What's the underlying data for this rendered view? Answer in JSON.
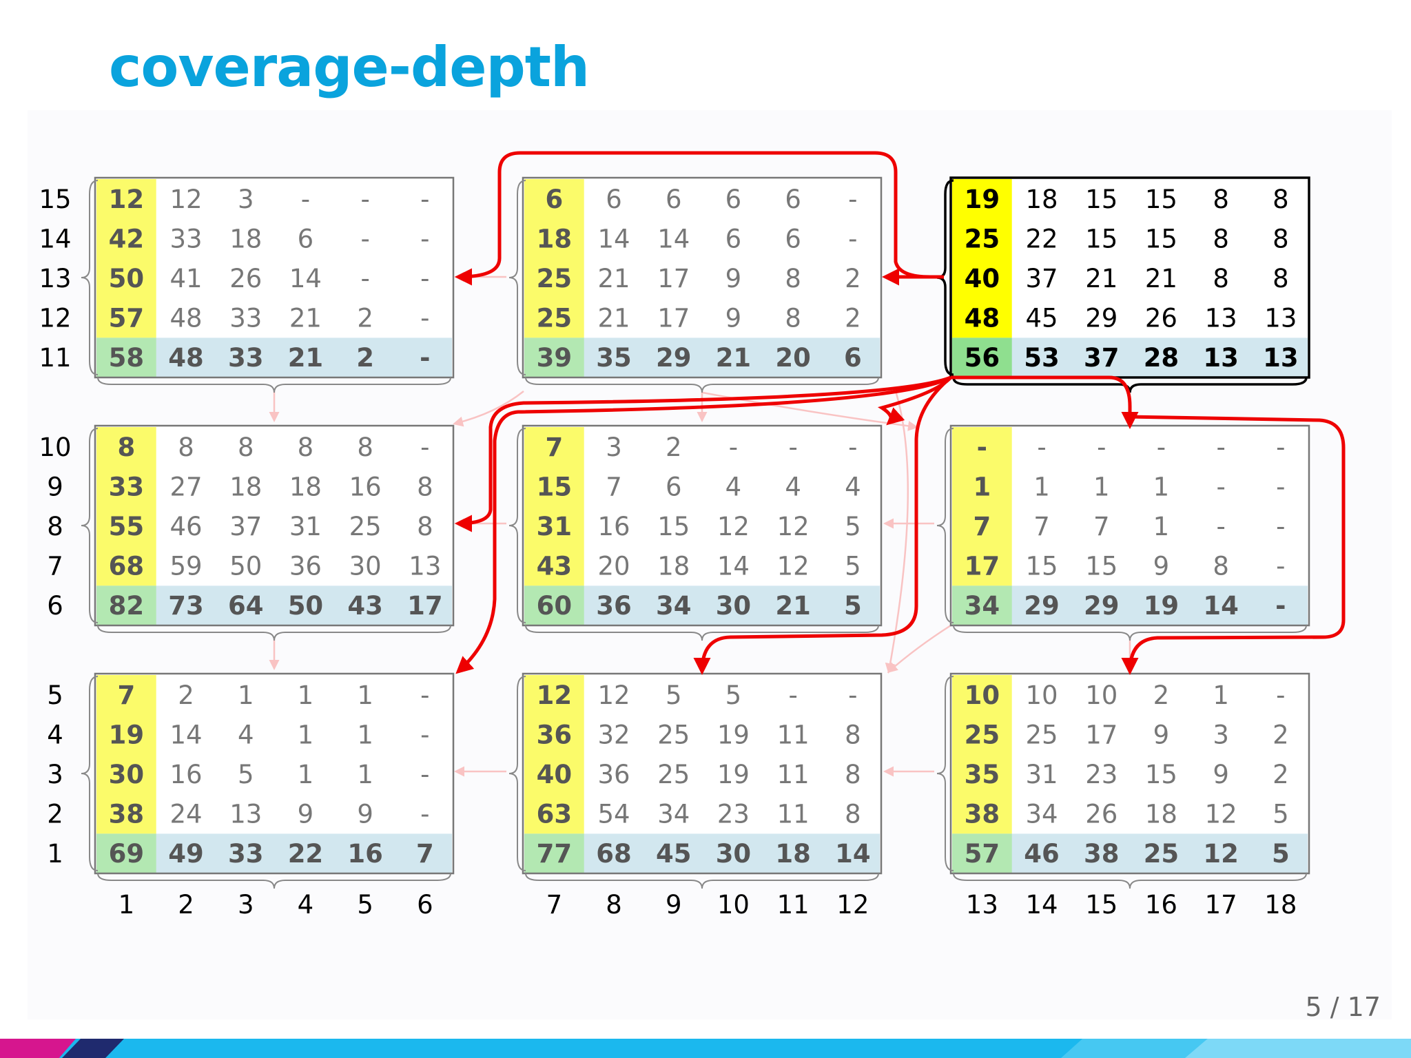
{
  "slide": {
    "title": "coverage-depth",
    "page_number": "5 / 17"
  },
  "diagram": {
    "row_labels": [
      "15",
      "14",
      "13",
      "12",
      "11",
      "10",
      "9",
      "8",
      "7",
      "6",
      "5",
      "4",
      "3",
      "2",
      "1"
    ],
    "col_labels": [
      "1",
      "2",
      "3",
      "4",
      "5",
      "6",
      "7",
      "8",
      "9",
      "10",
      "11",
      "12",
      "13",
      "14",
      "15",
      "16",
      "17",
      "18"
    ],
    "colors": {
      "first_column_fill": "#fbfb6a",
      "highlight_first_column_fill": "#ffff00",
      "bottom_row_fill": "#d2e7ef",
      "corner_cell_fill": "#b3e8b2",
      "highlight_corner_fill": "#8fdf8f",
      "red_arrow": "#ee0000",
      "faint_arrow": "#f9c3c3",
      "box_border": "#777777",
      "highlight_border": "#000000"
    },
    "blocks": [
      {
        "id": "b11",
        "highlight": false,
        "rows": [
          [
            "12",
            "12",
            "3",
            "-",
            "-",
            "-"
          ],
          [
            "42",
            "33",
            "18",
            "6",
            "-",
            "-"
          ],
          [
            "50",
            "41",
            "26",
            "14",
            "-",
            "-"
          ],
          [
            "57",
            "48",
            "33",
            "21",
            "2",
            "-"
          ],
          [
            "58",
            "48",
            "33",
            "21",
            "2",
            "-"
          ]
        ]
      },
      {
        "id": "b12",
        "highlight": false,
        "rows": [
          [
            "6",
            "6",
            "6",
            "6",
            "6",
            "-"
          ],
          [
            "18",
            "14",
            "14",
            "6",
            "6",
            "-"
          ],
          [
            "25",
            "21",
            "17",
            "9",
            "8",
            "2"
          ],
          [
            "25",
            "21",
            "17",
            "9",
            "8",
            "2"
          ],
          [
            "39",
            "35",
            "29",
            "21",
            "20",
            "6"
          ]
        ]
      },
      {
        "id": "b13",
        "highlight": true,
        "rows": [
          [
            "19",
            "18",
            "15",
            "15",
            "8",
            "8"
          ],
          [
            "25",
            "22",
            "15",
            "15",
            "8",
            "8"
          ],
          [
            "40",
            "37",
            "21",
            "21",
            "8",
            "8"
          ],
          [
            "48",
            "45",
            "29",
            "26",
            "13",
            "13"
          ],
          [
            "56",
            "53",
            "37",
            "28",
            "13",
            "13"
          ]
        ]
      },
      {
        "id": "b21",
        "highlight": false,
        "rows": [
          [
            "8",
            "8",
            "8",
            "8",
            "8",
            "-"
          ],
          [
            "33",
            "27",
            "18",
            "18",
            "16",
            "8"
          ],
          [
            "55",
            "46",
            "37",
            "31",
            "25",
            "8"
          ],
          [
            "68",
            "59",
            "50",
            "36",
            "30",
            "13"
          ],
          [
            "82",
            "73",
            "64",
            "50",
            "43",
            "17"
          ]
        ]
      },
      {
        "id": "b22",
        "highlight": false,
        "rows": [
          [
            "7",
            "3",
            "2",
            "-",
            "-",
            "-"
          ],
          [
            "15",
            "7",
            "6",
            "4",
            "4",
            "4"
          ],
          [
            "31",
            "16",
            "15",
            "12",
            "12",
            "5"
          ],
          [
            "43",
            "20",
            "18",
            "14",
            "12",
            "5"
          ],
          [
            "60",
            "36",
            "34",
            "30",
            "21",
            "5"
          ]
        ]
      },
      {
        "id": "b23",
        "highlight": false,
        "rows": [
          [
            "-",
            "-",
            "-",
            "-",
            "-",
            "-"
          ],
          [
            "1",
            "1",
            "1",
            "1",
            "-",
            "-"
          ],
          [
            "7",
            "7",
            "7",
            "1",
            "-",
            "-"
          ],
          [
            "17",
            "15",
            "15",
            "9",
            "8",
            "-"
          ],
          [
            "34",
            "29",
            "29",
            "19",
            "14",
            "-"
          ]
        ]
      },
      {
        "id": "b31",
        "highlight": false,
        "rows": [
          [
            "7",
            "2",
            "1",
            "1",
            "1",
            "-"
          ],
          [
            "19",
            "14",
            "4",
            "1",
            "1",
            "-"
          ],
          [
            "30",
            "16",
            "5",
            "1",
            "1",
            "-"
          ],
          [
            "38",
            "24",
            "13",
            "9",
            "9",
            "-"
          ],
          [
            "69",
            "49",
            "33",
            "22",
            "16",
            "7"
          ]
        ]
      },
      {
        "id": "b32",
        "highlight": false,
        "rows": [
          [
            "12",
            "12",
            "5",
            "5",
            "-",
            "-"
          ],
          [
            "36",
            "32",
            "25",
            "19",
            "11",
            "8"
          ],
          [
            "40",
            "36",
            "25",
            "19",
            "11",
            "8"
          ],
          [
            "63",
            "54",
            "34",
            "23",
            "11",
            "8"
          ],
          [
            "77",
            "68",
            "45",
            "30",
            "18",
            "14"
          ]
        ]
      },
      {
        "id": "b33",
        "highlight": false,
        "rows": [
          [
            "10",
            "10",
            "10",
            "2",
            "1",
            "-"
          ],
          [
            "25",
            "25",
            "17",
            "9",
            "3",
            "2"
          ],
          [
            "35",
            "31",
            "23",
            "15",
            "9",
            "2"
          ],
          [
            "38",
            "34",
            "26",
            "18",
            "12",
            "5"
          ],
          [
            "57",
            "46",
            "38",
            "25",
            "12",
            "5"
          ]
        ]
      }
    ]
  }
}
